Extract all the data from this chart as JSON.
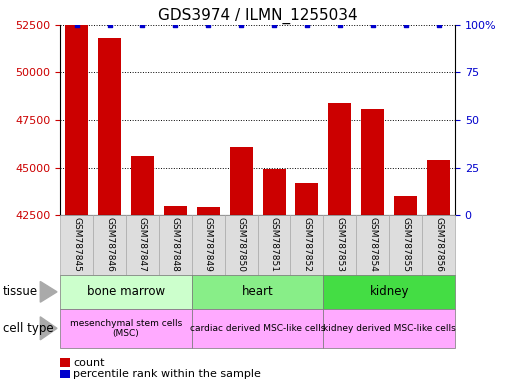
{
  "title": "GDS3974 / ILMN_1255034",
  "samples": [
    "GSM787845",
    "GSM787846",
    "GSM787847",
    "GSM787848",
    "GSM787849",
    "GSM787850",
    "GSM787851",
    "GSM787852",
    "GSM787853",
    "GSM787854",
    "GSM787855",
    "GSM787856"
  ],
  "counts": [
    52500,
    51800,
    45600,
    43000,
    42900,
    46100,
    44900,
    44200,
    48400,
    48100,
    43500,
    45400
  ],
  "percentiles": [
    100,
    100,
    100,
    100,
    100,
    100,
    100,
    100,
    100,
    100,
    100,
    100
  ],
  "ylim_left": [
    42500,
    52500
  ],
  "ylim_right": [
    0,
    100
  ],
  "yticks_left": [
    42500,
    45000,
    47500,
    50000,
    52500
  ],
  "yticks_right": [
    0,
    25,
    50,
    75,
    100
  ],
  "bar_color": "#cc0000",
  "dot_color": "#0000cc",
  "tissue_groups": [
    {
      "label": "bone marrow",
      "start": 0,
      "end": 3,
      "color": "#ccffcc"
    },
    {
      "label": "heart",
      "start": 4,
      "end": 7,
      "color": "#88ee88"
    },
    {
      "label": "kidney",
      "start": 8,
      "end": 11,
      "color": "#44dd44"
    }
  ],
  "cell_type_groups": [
    {
      "label": "mesenchymal stem cells\n(MSC)",
      "start": 0,
      "end": 3,
      "color": "#ffaaff"
    },
    {
      "label": "cardiac derived MSC-like cells",
      "start": 4,
      "end": 7,
      "color": "#ffaaff"
    },
    {
      "label": "kidney derived MSC-like cells",
      "start": 8,
      "end": 11,
      "color": "#ffaaff"
    }
  ],
  "tissue_label": "tissue",
  "cell_type_label": "cell type",
  "legend_count_label": "count",
  "legend_pct_label": "percentile rank within the sample",
  "title_fontsize": 11,
  "axis_label_color_left": "#cc0000",
  "axis_label_color_right": "#0000cc",
  "sample_box_color": "#dddddd",
  "sample_box_edge": "#aaaaaa"
}
